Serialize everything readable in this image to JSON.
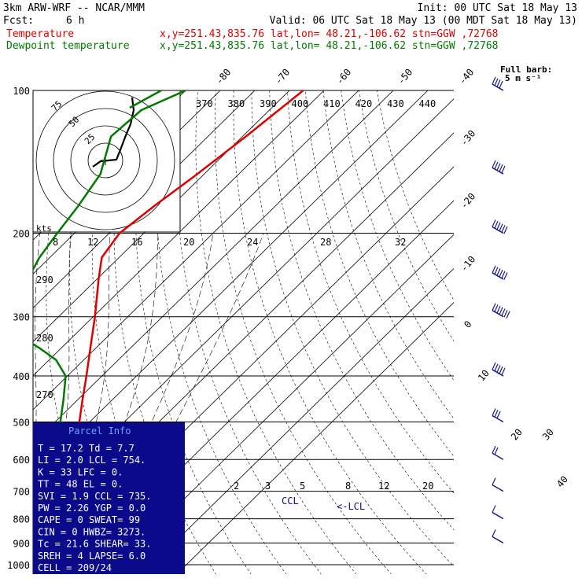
{
  "header": {
    "model": "3km ARW-WRF -- NCAR/MMM",
    "init": "Init: 00 UTC Sat 18 May 13",
    "fcst_label": "Fcst:",
    "fcst_value": "6 h",
    "valid": "Valid: 06 UTC Sat 18 May 13 (00 MDT Sat 18 May 13)",
    "temperature_label": "Temperature",
    "dewpoint_label": "Dewpoint temperature",
    "loc_temp": "x,y=251.43,835.76   lat,lon= 48.21,-106.62   stn=GGW ,72768",
    "loc_dew": "x,y=251.43,835.76   lat,lon= 48.21,-106.62   stn=GGW ,72768",
    "barb_legend_1": "Full barb:",
    "barb_legend_2": "5 m s⁻¹"
  },
  "parcel_info": {
    "title": "Parcel Info",
    "rows": [
      "T  =   17.2  Td =   7.7",
      "LI =    2.0  LCL =  754.",
      "K  =     33  LFC =    0.",
      "TT =     48  EL  =    0.",
      "SVI =   1.9  CCL =  735.",
      "PW =   2.26  YGP =   0.0",
      "CAPE =    0  SWEAT=   99",
      "CIN =     0  HWBZ= 3273.",
      "Tc =   21.6  SHEAR=  33.",
      "SREH =    4  LAPSE=  6.0",
      "CELL = 209/24"
    ]
  },
  "hodograph": {
    "units": "kts",
    "ring_labels": [
      "75",
      "50",
      "25"
    ]
  },
  "annotations": {
    "ccl": "CCL",
    "lcl": "<-LCL"
  },
  "colors": {
    "temperature": "#e00000",
    "dewpoint": "#007a00",
    "wind": "#1a1a8c",
    "hodograph": "#000000",
    "parcel_box": "#0a0a8a",
    "parcel_title": "#6fa0ff"
  },
  "chart_data": {
    "type": "line",
    "title": "",
    "xlabel": "",
    "ylabel": "",
    "y_scale": "log-pressure",
    "pressure_ticks": [
      100,
      200,
      300,
      400,
      500,
      600,
      700,
      800,
      900,
      1000
    ],
    "isotherm_labels": [
      "-80",
      "-70",
      "-60",
      "-50",
      "-40",
      "-30",
      "-20",
      "-10",
      "0",
      "10",
      "20",
      "30",
      "40"
    ],
    "theta_labels": [
      "370",
      "380",
      "390",
      "400",
      "410",
      "420",
      "430",
      "440"
    ],
    "theta_left_labels": [
      "290",
      "280",
      "270"
    ],
    "mixing_ratio_top_labels": [
      "8",
      "12",
      "16",
      "20",
      "24",
      "28",
      "32"
    ],
    "mixing_ratio_bottom_labels": [
      "2",
      "3",
      "5",
      "8",
      "12",
      "20"
    ],
    "series": [
      {
        "name": "Temperature",
        "color": "#e00000",
        "points": [
          [
            920,
            17.2
          ],
          [
            900,
            15.2
          ],
          [
            850,
            12.0
          ],
          [
            800,
            8.5
          ],
          [
            750,
            5.0
          ],
          [
            700,
            1.5
          ],
          [
            650,
            -1.5
          ],
          [
            600,
            -4.5
          ],
          [
            550,
            -8.5
          ],
          [
            500,
            -13.0
          ],
          [
            450,
            -18.5
          ],
          [
            400,
            -24.5
          ],
          [
            350,
            -31.5
          ],
          [
            300,
            -39.5
          ],
          [
            250,
            -49.5
          ],
          [
            225,
            -55.0
          ],
          [
            200,
            -57.0
          ],
          [
            175,
            -55.0
          ],
          [
            150,
            -52.0
          ],
          [
            125,
            -49.0
          ],
          [
            100,
            -46.0
          ]
        ]
      },
      {
        "name": "Dewpoint temperature",
        "color": "#007a00",
        "points": [
          [
            920,
            7.7
          ],
          [
            900,
            7.5
          ],
          [
            850,
            6.5
          ],
          [
            800,
            3.5
          ],
          [
            750,
            0.0
          ],
          [
            700,
            -3.5
          ],
          [
            650,
            -7.0
          ],
          [
            600,
            -12.5
          ],
          [
            550,
            -16.5
          ],
          [
            500,
            -18.5
          ],
          [
            450,
            -24.0
          ],
          [
            400,
            -30.5
          ],
          [
            370,
            -38.0
          ],
          [
            350,
            -46.0
          ],
          [
            320,
            -60.0
          ],
          [
            300,
            -66.0
          ],
          [
            270,
            -65.0
          ],
          [
            250,
            -70.0
          ],
          [
            225,
            -73.0
          ],
          [
            200,
            -75.0
          ],
          [
            175,
            -77.0
          ],
          [
            150,
            -80.0
          ],
          [
            125,
            -88.0
          ],
          [
            110,
            -87.0
          ],
          [
            100,
            -80.0
          ]
        ]
      }
    ],
    "wind_profile": [
      {
        "p": 100,
        "speed_ms": 20
      },
      {
        "p": 150,
        "speed_ms": 25
      },
      {
        "p": 200,
        "speed_ms": 30
      },
      {
        "p": 250,
        "speed_ms": 30
      },
      {
        "p": 300,
        "speed_ms": 35
      },
      {
        "p": 400,
        "speed_ms": 25
      },
      {
        "p": 500,
        "speed_ms": 15
      },
      {
        "p": 600,
        "speed_ms": 10
      },
      {
        "p": 700,
        "speed_ms": 5
      },
      {
        "p": 800,
        "speed_ms": 5
      },
      {
        "p": 900,
        "speed_ms": 5
      }
    ]
  }
}
